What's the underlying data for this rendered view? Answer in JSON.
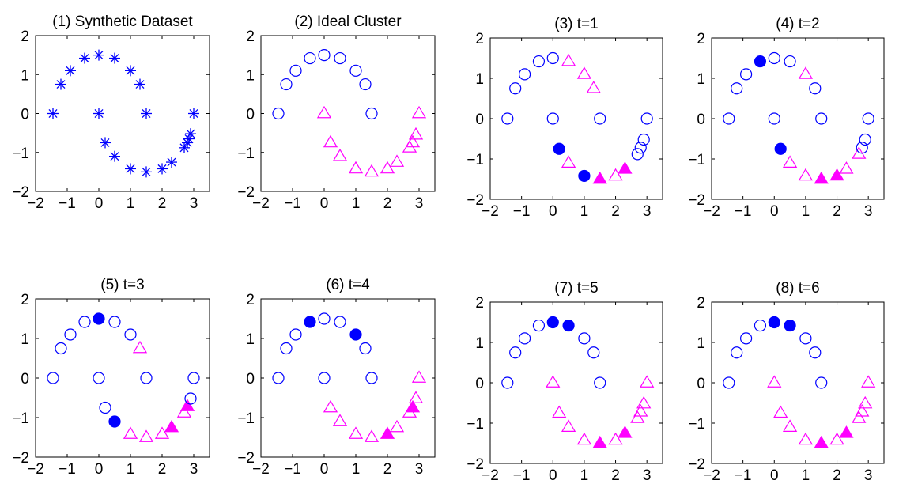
{
  "colors": {
    "blue": "#0000ff",
    "magenta": "#ff00ff",
    "axis": "#000000"
  },
  "marker_legend": {
    "star": "blue asterisk",
    "circle": "blue open circle",
    "filled_circle": "blue filled circle",
    "triangle": "magenta open triangle",
    "filled_triangle": "magenta filled triangle"
  },
  "chart_data": [
    {
      "type": "scatter",
      "title": "(1)  Synthetic Dataset",
      "xlim": [
        -2,
        3.5
      ],
      "ylim": [
        -2,
        2
      ],
      "xticks": [
        "−2",
        "−1",
        "0",
        "1",
        "2",
        "3"
      ],
      "yticks": [
        "2",
        "1",
        "0",
        "−1",
        "−2"
      ],
      "grid": false,
      "points": [
        {
          "x": -1.45,
          "y": 0,
          "m": "star"
        },
        {
          "x": -1.2,
          "y": 0.75,
          "m": "star"
        },
        {
          "x": -0.9,
          "y": 1.1,
          "m": "star"
        },
        {
          "x": -0.45,
          "y": 1.42,
          "m": "star"
        },
        {
          "x": 0,
          "y": 1.5,
          "m": "star"
        },
        {
          "x": 0.5,
          "y": 1.42,
          "m": "star"
        },
        {
          "x": 1,
          "y": 1.1,
          "m": "star"
        },
        {
          "x": 1.3,
          "y": 0.75,
          "m": "star"
        },
        {
          "x": 1.5,
          "y": 0,
          "m": "star"
        },
        {
          "x": 0,
          "y": 0,
          "m": "star"
        },
        {
          "x": 3,
          "y": 0,
          "m": "star"
        },
        {
          "x": 0.2,
          "y": -0.75,
          "m": "star"
        },
        {
          "x": 0.5,
          "y": -1.1,
          "m": "star"
        },
        {
          "x": 1,
          "y": -1.42,
          "m": "star"
        },
        {
          "x": 1.5,
          "y": -1.5,
          "m": "star"
        },
        {
          "x": 2,
          "y": -1.42,
          "m": "star"
        },
        {
          "x": 2.3,
          "y": -1.25,
          "m": "star"
        },
        {
          "x": 2.7,
          "y": -0.88,
          "m": "star"
        },
        {
          "x": 2.8,
          "y": -0.75,
          "m": "star"
        },
        {
          "x": 2.85,
          "y": -0.65,
          "m": "star"
        },
        {
          "x": 2.9,
          "y": -0.52,
          "m": "star"
        }
      ]
    },
    {
      "type": "scatter",
      "title": "(2) Ideal Cluster",
      "xlim": [
        -2,
        3.5
      ],
      "ylim": [
        -2,
        2
      ],
      "xticks": [
        "−2",
        "−1",
        "0",
        "1",
        "2",
        "3"
      ],
      "yticks": [
        "2",
        "1",
        "0",
        "−1",
        "−2"
      ],
      "grid": false,
      "points": [
        {
          "x": -1.45,
          "y": 0,
          "m": "circle"
        },
        {
          "x": -1.2,
          "y": 0.75,
          "m": "circle"
        },
        {
          "x": -0.9,
          "y": 1.1,
          "m": "circle"
        },
        {
          "x": -0.45,
          "y": 1.42,
          "m": "circle"
        },
        {
          "x": 0,
          "y": 1.5,
          "m": "circle"
        },
        {
          "x": 0.5,
          "y": 1.42,
          "m": "circle"
        },
        {
          "x": 1,
          "y": 1.1,
          "m": "circle"
        },
        {
          "x": 1.3,
          "y": 0.75,
          "m": "circle"
        },
        {
          "x": 1.5,
          "y": 0,
          "m": "circle"
        },
        {
          "x": 0,
          "y": 0,
          "m": "triangle"
        },
        {
          "x": 3,
          "y": 0,
          "m": "triangle"
        },
        {
          "x": 0.2,
          "y": -0.75,
          "m": "triangle"
        },
        {
          "x": 0.5,
          "y": -1.1,
          "m": "triangle"
        },
        {
          "x": 1,
          "y": -1.42,
          "m": "triangle"
        },
        {
          "x": 1.5,
          "y": -1.5,
          "m": "triangle"
        },
        {
          "x": 2,
          "y": -1.42,
          "m": "triangle"
        },
        {
          "x": 2.3,
          "y": -1.25,
          "m": "triangle"
        },
        {
          "x": 2.7,
          "y": -0.88,
          "m": "triangle"
        },
        {
          "x": 2.8,
          "y": -0.75,
          "m": "triangle"
        },
        {
          "x": 2.9,
          "y": -0.55,
          "m": "triangle"
        }
      ]
    },
    {
      "type": "scatter",
      "title": "(3) t=1",
      "xlim": [
        -2,
        3.5
      ],
      "ylim": [
        -2,
        2
      ],
      "xticks": [
        "−2",
        "−1",
        "0",
        "1",
        "2",
        "3"
      ],
      "yticks": [
        "2",
        "1",
        "0",
        "−1",
        "−2"
      ],
      "grid": false,
      "points": [
        {
          "x": -1.45,
          "y": 0,
          "m": "circle"
        },
        {
          "x": -1.2,
          "y": 0.75,
          "m": "circle"
        },
        {
          "x": -0.9,
          "y": 1.1,
          "m": "circle"
        },
        {
          "x": -0.45,
          "y": 1.42,
          "m": "circle"
        },
        {
          "x": 0,
          "y": 1.5,
          "m": "circle"
        },
        {
          "x": 0.5,
          "y": 1.42,
          "m": "triangle"
        },
        {
          "x": 1,
          "y": 1.1,
          "m": "triangle"
        },
        {
          "x": 1.3,
          "y": 0.75,
          "m": "triangle"
        },
        {
          "x": 1.5,
          "y": 0,
          "m": "circle"
        },
        {
          "x": 0,
          "y": 0,
          "m": "circle"
        },
        {
          "x": 3,
          "y": 0,
          "m": "circle"
        },
        {
          "x": 0.2,
          "y": -0.75,
          "m": "filled_circle"
        },
        {
          "x": 0.5,
          "y": -1.1,
          "m": "triangle"
        },
        {
          "x": 1,
          "y": -1.42,
          "m": "filled_circle"
        },
        {
          "x": 1.5,
          "y": -1.5,
          "m": "filled_triangle"
        },
        {
          "x": 2,
          "y": -1.42,
          "m": "triangle"
        },
        {
          "x": 2.3,
          "y": -1.25,
          "m": "filled_triangle"
        },
        {
          "x": 2.7,
          "y": -0.88,
          "m": "circle"
        },
        {
          "x": 2.8,
          "y": -0.72,
          "m": "circle"
        },
        {
          "x": 2.9,
          "y": -0.52,
          "m": "circle"
        }
      ]
    },
    {
      "type": "scatter",
      "title": "(4) t=2",
      "xlim": [
        -2,
        3.5
      ],
      "ylim": [
        -2,
        2
      ],
      "xticks": [
        "−2",
        "−1",
        "0",
        "1",
        "2",
        "3"
      ],
      "yticks": [
        "2",
        "1",
        "0",
        "−1",
        "−2"
      ],
      "grid": false,
      "points": [
        {
          "x": -1.45,
          "y": 0,
          "m": "circle"
        },
        {
          "x": -1.2,
          "y": 0.75,
          "m": "circle"
        },
        {
          "x": -0.9,
          "y": 1.1,
          "m": "circle"
        },
        {
          "x": -0.45,
          "y": 1.42,
          "m": "filled_circle"
        },
        {
          "x": 0,
          "y": 1.5,
          "m": "circle"
        },
        {
          "x": 0.5,
          "y": 1.42,
          "m": "circle"
        },
        {
          "x": 1,
          "y": 1.1,
          "m": "triangle"
        },
        {
          "x": 1.3,
          "y": 0.75,
          "m": "circle"
        },
        {
          "x": 1.5,
          "y": 0,
          "m": "circle"
        },
        {
          "x": 0,
          "y": 0,
          "m": "circle"
        },
        {
          "x": 3,
          "y": 0,
          "m": "circle"
        },
        {
          "x": 0.2,
          "y": -0.75,
          "m": "filled_circle"
        },
        {
          "x": 0.5,
          "y": -1.1,
          "m": "triangle"
        },
        {
          "x": 1,
          "y": -1.42,
          "m": "triangle"
        },
        {
          "x": 1.5,
          "y": -1.5,
          "m": "filled_triangle"
        },
        {
          "x": 2,
          "y": -1.42,
          "m": "filled_triangle"
        },
        {
          "x": 2.3,
          "y": -1.25,
          "m": "triangle"
        },
        {
          "x": 2.7,
          "y": -0.88,
          "m": "triangle"
        },
        {
          "x": 2.8,
          "y": -0.72,
          "m": "circle"
        },
        {
          "x": 2.9,
          "y": -0.52,
          "m": "circle"
        }
      ]
    },
    {
      "type": "scatter",
      "title": "(5) t=3",
      "xlim": [
        -2,
        3.5
      ],
      "ylim": [
        -2,
        2
      ],
      "xticks": [
        "−2",
        "−1",
        "0",
        "1",
        "2",
        "3"
      ],
      "yticks": [
        "2",
        "1",
        "0",
        "−1",
        "−2"
      ],
      "grid": false,
      "points": [
        {
          "x": -1.45,
          "y": 0,
          "m": "circle"
        },
        {
          "x": -1.2,
          "y": 0.75,
          "m": "circle"
        },
        {
          "x": -0.9,
          "y": 1.1,
          "m": "circle"
        },
        {
          "x": -0.45,
          "y": 1.42,
          "m": "circle"
        },
        {
          "x": 0,
          "y": 1.5,
          "m": "filled_circle"
        },
        {
          "x": 0.5,
          "y": 1.42,
          "m": "circle"
        },
        {
          "x": 1,
          "y": 1.1,
          "m": "circle"
        },
        {
          "x": 1.3,
          "y": 0.75,
          "m": "triangle"
        },
        {
          "x": 1.5,
          "y": 0,
          "m": "circle"
        },
        {
          "x": 0,
          "y": 0,
          "m": "circle"
        },
        {
          "x": 3,
          "y": 0,
          "m": "circle"
        },
        {
          "x": 0.2,
          "y": -0.75,
          "m": "circle"
        },
        {
          "x": 0.5,
          "y": -1.1,
          "m": "filled_circle"
        },
        {
          "x": 1,
          "y": -1.42,
          "m": "triangle"
        },
        {
          "x": 1.5,
          "y": -1.5,
          "m": "triangle"
        },
        {
          "x": 2,
          "y": -1.42,
          "m": "triangle"
        },
        {
          "x": 2.3,
          "y": -1.25,
          "m": "filled_triangle"
        },
        {
          "x": 2.7,
          "y": -0.88,
          "m": "triangle"
        },
        {
          "x": 2.8,
          "y": -0.72,
          "m": "filled_triangle"
        },
        {
          "x": 2.9,
          "y": -0.52,
          "m": "circle"
        }
      ]
    },
    {
      "type": "scatter",
      "title": "(6) t=4",
      "xlim": [
        -2,
        3.5
      ],
      "ylim": [
        -2,
        2
      ],
      "xticks": [
        "−2",
        "−1",
        "0",
        "1",
        "2",
        "3"
      ],
      "yticks": [
        "2",
        "1",
        "0",
        "−1",
        "−2"
      ],
      "grid": false,
      "points": [
        {
          "x": -1.45,
          "y": 0,
          "m": "circle"
        },
        {
          "x": -1.2,
          "y": 0.75,
          "m": "circle"
        },
        {
          "x": -0.9,
          "y": 1.1,
          "m": "circle"
        },
        {
          "x": -0.45,
          "y": 1.42,
          "m": "filled_circle"
        },
        {
          "x": 0,
          "y": 1.5,
          "m": "circle"
        },
        {
          "x": 0.5,
          "y": 1.42,
          "m": "circle"
        },
        {
          "x": 1,
          "y": 1.1,
          "m": "filled_circle"
        },
        {
          "x": 1.3,
          "y": 0.75,
          "m": "circle"
        },
        {
          "x": 1.5,
          "y": 0,
          "m": "circle"
        },
        {
          "x": 0,
          "y": 0,
          "m": "circle"
        },
        {
          "x": 3,
          "y": 0,
          "m": "triangle"
        },
        {
          "x": 0.2,
          "y": -0.75,
          "m": "triangle"
        },
        {
          "x": 0.5,
          "y": -1.1,
          "m": "triangle"
        },
        {
          "x": 1,
          "y": -1.42,
          "m": "triangle"
        },
        {
          "x": 1.5,
          "y": -1.5,
          "m": "triangle"
        },
        {
          "x": 2,
          "y": -1.42,
          "m": "filled_triangle"
        },
        {
          "x": 2.3,
          "y": -1.25,
          "m": "triangle"
        },
        {
          "x": 2.7,
          "y": -0.88,
          "m": "triangle"
        },
        {
          "x": 2.8,
          "y": -0.75,
          "m": "filled_triangle"
        },
        {
          "x": 2.9,
          "y": -0.52,
          "m": "triangle"
        }
      ]
    },
    {
      "type": "scatter",
      "title": "(7) t=5",
      "xlim": [
        -2,
        3.5
      ],
      "ylim": [
        -2,
        2
      ],
      "xticks": [
        "−2",
        "−1",
        "0",
        "1",
        "2",
        "3"
      ],
      "yticks": [
        "2",
        "1",
        "0",
        "−1",
        "−2"
      ],
      "grid": false,
      "points": [
        {
          "x": -1.45,
          "y": 0,
          "m": "circle"
        },
        {
          "x": -1.2,
          "y": 0.75,
          "m": "circle"
        },
        {
          "x": -0.9,
          "y": 1.1,
          "m": "circle"
        },
        {
          "x": -0.45,
          "y": 1.42,
          "m": "circle"
        },
        {
          "x": 0,
          "y": 1.5,
          "m": "filled_circle"
        },
        {
          "x": 0.5,
          "y": 1.42,
          "m": "filled_circle"
        },
        {
          "x": 1,
          "y": 1.1,
          "m": "circle"
        },
        {
          "x": 1.3,
          "y": 0.75,
          "m": "circle"
        },
        {
          "x": 1.5,
          "y": 0,
          "m": "circle"
        },
        {
          "x": 0,
          "y": 0,
          "m": "triangle"
        },
        {
          "x": 3,
          "y": 0,
          "m": "triangle"
        },
        {
          "x": 0.2,
          "y": -0.75,
          "m": "triangle"
        },
        {
          "x": 0.5,
          "y": -1.1,
          "m": "triangle"
        },
        {
          "x": 1,
          "y": -1.42,
          "m": "triangle"
        },
        {
          "x": 1.5,
          "y": -1.5,
          "m": "filled_triangle"
        },
        {
          "x": 2,
          "y": -1.42,
          "m": "triangle"
        },
        {
          "x": 2.3,
          "y": -1.25,
          "m": "filled_triangle"
        },
        {
          "x": 2.7,
          "y": -0.88,
          "m": "triangle"
        },
        {
          "x": 2.8,
          "y": -0.72,
          "m": "triangle"
        },
        {
          "x": 2.9,
          "y": -0.52,
          "m": "triangle"
        }
      ]
    },
    {
      "type": "scatter",
      "title": "(8) t=6",
      "xlim": [
        -2,
        3.5
      ],
      "ylim": [
        -2,
        2
      ],
      "xticks": [
        "−2",
        "−1",
        "0",
        "1",
        "2",
        "3"
      ],
      "yticks": [
        "2",
        "1",
        "0",
        "−1",
        "−2"
      ],
      "grid": false,
      "points": [
        {
          "x": -1.45,
          "y": 0,
          "m": "circle"
        },
        {
          "x": -1.2,
          "y": 0.75,
          "m": "circle"
        },
        {
          "x": -0.9,
          "y": 1.1,
          "m": "circle"
        },
        {
          "x": -0.45,
          "y": 1.42,
          "m": "circle"
        },
        {
          "x": 0,
          "y": 1.5,
          "m": "filled_circle"
        },
        {
          "x": 0.5,
          "y": 1.42,
          "m": "filled_circle"
        },
        {
          "x": 1,
          "y": 1.1,
          "m": "circle"
        },
        {
          "x": 1.3,
          "y": 0.75,
          "m": "circle"
        },
        {
          "x": 1.5,
          "y": 0,
          "m": "circle"
        },
        {
          "x": 0,
          "y": 0,
          "m": "triangle"
        },
        {
          "x": 3,
          "y": 0,
          "m": "triangle"
        },
        {
          "x": 0.2,
          "y": -0.75,
          "m": "triangle"
        },
        {
          "x": 0.5,
          "y": -1.1,
          "m": "triangle"
        },
        {
          "x": 1,
          "y": -1.42,
          "m": "triangle"
        },
        {
          "x": 1.5,
          "y": -1.5,
          "m": "filled_triangle"
        },
        {
          "x": 2,
          "y": -1.42,
          "m": "triangle"
        },
        {
          "x": 2.3,
          "y": -1.25,
          "m": "filled_triangle"
        },
        {
          "x": 2.7,
          "y": -0.88,
          "m": "triangle"
        },
        {
          "x": 2.8,
          "y": -0.72,
          "m": "triangle"
        },
        {
          "x": 2.9,
          "y": -0.52,
          "m": "triangle"
        }
      ]
    }
  ]
}
